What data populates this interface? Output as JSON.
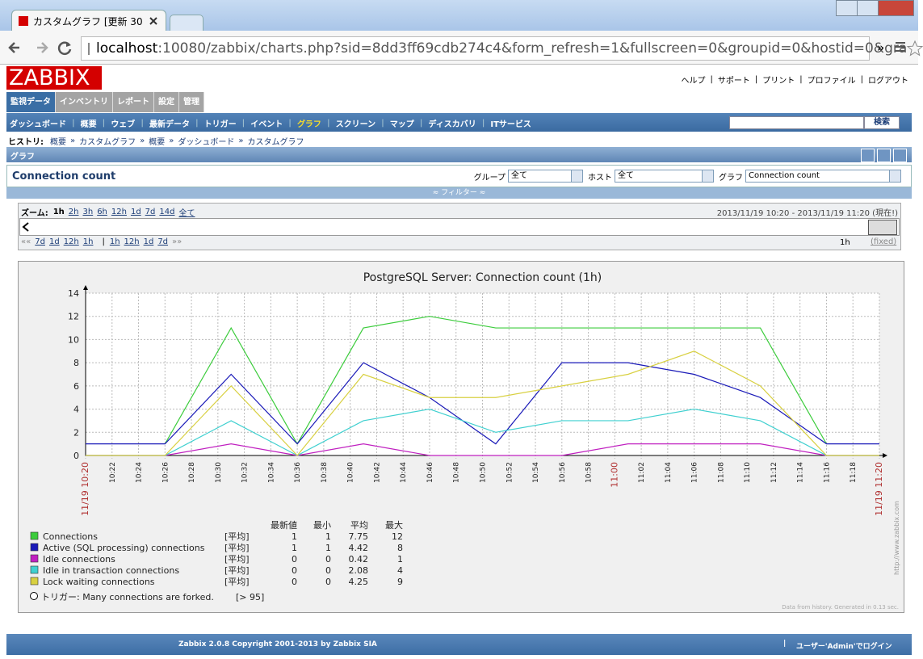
{
  "browser": {
    "tab_title": "カスタムグラフ [更新 30",
    "url_host": "localhost",
    "url_rest": ":10080/zabbix/charts.php?sid=8dd3ff69cdb274c4&form_refresh=1&fullscreen=0&groupid=0&hostid=0&gra",
    "overflow": "»"
  },
  "header": {
    "logo": "ZABBIX",
    "links": [
      "ヘルプ",
      "サポート",
      "プリント",
      "プロファイル",
      "ログアウト"
    ],
    "separator": "|"
  },
  "main_menu": [
    "監視データ",
    "インベントリ",
    "レポート",
    "設定",
    "管理"
  ],
  "sub_menu": [
    "ダッシュボード",
    "概要",
    "ウェブ",
    "最新データ",
    "トリガー",
    "イベント",
    "グラフ",
    "スクリーン",
    "マップ",
    "ディスカバリ",
    "ITサービス"
  ],
  "sub_menu_active": 6,
  "sub_menu_separator": "|",
  "search_button": "検索",
  "history": {
    "label": "ヒストリ:",
    "items": [
      "概要",
      "カスタムグラフ",
      "概要",
      "ダッシュボード",
      "カスタムグラフ"
    ],
    "separator": "»"
  },
  "section_title": "グラフ",
  "page_title": "Connection count",
  "filters": [
    {
      "label": "グループ",
      "value": "全て"
    },
    {
      "label": "ホスト",
      "value": "全て"
    },
    {
      "label": "グラフ",
      "value": "Connection count"
    }
  ],
  "filter_toggle": "≈ フィルター ≈",
  "zoom": {
    "label": "ズーム:",
    "options": [
      "1h",
      "2h",
      "3h",
      "6h",
      "12h",
      "1d",
      "7d",
      "14d",
      "全て"
    ],
    "range": "2013/11/19 10:20  -  2013/11/19 11:20 (現在!)",
    "back_marker": "««",
    "back": [
      "7d",
      "1d",
      "12h",
      "1h"
    ],
    "separator": "|",
    "fwd": [
      "1h",
      "12h",
      "1d",
      "7d"
    ],
    "fwd_marker": "»»",
    "period": "1h",
    "fixed": "(fixed)"
  },
  "chart_data": {
    "type": "line",
    "title": "PostgreSQL Server: Connection count (1h)",
    "x": [
      "10:20",
      "10:26",
      "10:31",
      "10:36",
      "10:41",
      "10:46",
      "10:51",
      "10:56",
      "11:01",
      "11:06",
      "11:11",
      "11:16",
      "11:20"
    ],
    "series": [
      {
        "name": "Connections",
        "color": "#3ccc3c",
        "values": [
          null,
          1,
          11,
          1,
          11,
          12,
          11,
          11,
          11,
          11,
          11,
          1,
          null
        ]
      },
      {
        "name": "Active (SQL processing) connections",
        "color": "#1a1ab8",
        "values": [
          1,
          1,
          7,
          1,
          8,
          5,
          1,
          8,
          8,
          7,
          5,
          1,
          1
        ]
      },
      {
        "name": "Idle connections",
        "color": "#c020c0",
        "values": [
          0,
          0,
          1,
          0,
          1,
          0,
          0,
          0,
          1,
          1,
          1,
          0,
          0
        ]
      },
      {
        "name": "Idle in transaction connections",
        "color": "#40d0d0",
        "values": [
          0,
          0,
          3,
          0,
          3,
          4,
          2,
          3,
          3,
          4,
          3,
          0,
          0
        ]
      },
      {
        "name": "Lock waiting connections",
        "color": "#d8d040",
        "values": [
          0,
          0,
          6,
          0,
          7,
          5,
          5,
          6,
          7,
          9,
          6,
          0,
          0
        ]
      }
    ],
    "xlim": [
      "10:20",
      "11:20"
    ],
    "xticks": [
      {
        "value": "10:20",
        "label": "11/19 10:20"
      },
      "10:22",
      "10:24",
      "10:26",
      "10:28",
      "10:30",
      "10:32",
      "10:34",
      "10:36",
      "10:38",
      "10:40",
      "10:42",
      "10:44",
      "10:46",
      "10:48",
      "10:50",
      "10:52",
      "10:54",
      "10:56",
      "10:58",
      {
        "value": "11:00",
        "label": "11:00"
      },
      "11:02",
      "11:04",
      "11:06",
      "11:08",
      "11:10",
      "11:12",
      "11:14",
      "11:16",
      "11:18",
      {
        "value": "11:20",
        "label": "11/19 11:20"
      }
    ],
    "ylim": [
      0,
      14
    ],
    "yticks": [
      0,
      2,
      4,
      6,
      8,
      10,
      12,
      14
    ],
    "grid": true,
    "highlight_color": "#b03030",
    "watermark": "http://www.zabbix.com",
    "note": "Data from history. Generated in 0.13 sec."
  },
  "legend_table": {
    "header": [
      "最新値",
      "最小",
      "平均",
      "最大"
    ],
    "rows": [
      {
        "func": "[平均]",
        "last": 1,
        "min": 1,
        "avg": 7.75,
        "max": 12
      },
      {
        "func": "[平均]",
        "last": 1,
        "min": 1,
        "avg": 4.42,
        "max": 8
      },
      {
        "func": "[平均]",
        "last": 0,
        "min": 0,
        "avg": 0.42,
        "max": 1
      },
      {
        "func": "[平均]",
        "last": 0,
        "min": 0,
        "avg": 2.08,
        "max": 4
      },
      {
        "func": "[平均]",
        "last": 0,
        "min": 0,
        "avg": 4.25,
        "max": 9
      }
    ]
  },
  "trigger": {
    "text": "トリガー: Many connections are forked.",
    "threshold": "[> 95]"
  },
  "footer": {
    "copyright": "Zabbix 2.0.8 Copyright 2001-2013 by Zabbix SIA",
    "separator": "|",
    "login": "ユーザー'Admin'でログイン"
  }
}
